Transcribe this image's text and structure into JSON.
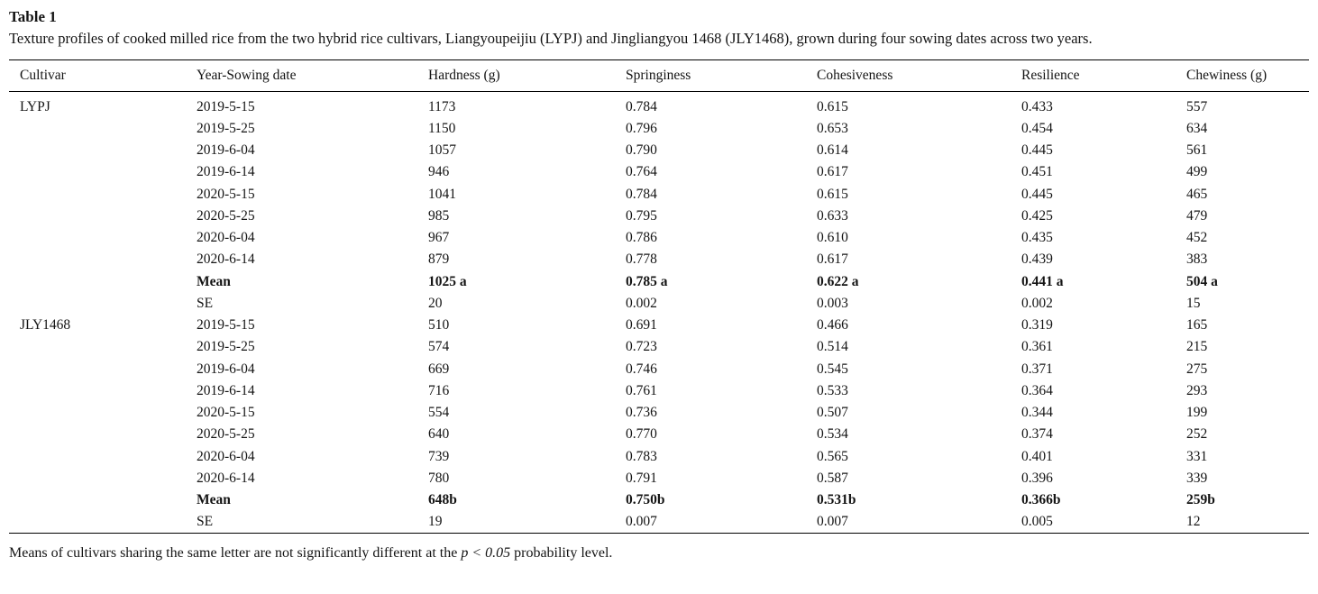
{
  "page": {
    "label": "Table 1",
    "caption": "Texture profiles of cooked milled rice from the two hybrid rice cultivars, Liangyoupeijiu (LYPJ) and Jingliangyou 1468 (JLY1468), grown during four sowing dates across two years.",
    "footnote": {
      "prefix": "Means of cultivars sharing the same letter are not significantly different at the ",
      "italic": "p < 0.05",
      "suffix": " probability level."
    }
  },
  "chart_data": {
    "type": "table",
    "title": "Texture profiles of cooked milled rice (LYPJ and JLY1468, four sowing dates, two years)",
    "columns": [
      "Cultivar",
      "Year-Sowing date",
      "Hardness (g)",
      "Springiness",
      "Cohesiveness",
      "Resilience",
      "Chewiness (g)"
    ],
    "rows": [
      {
        "bold": false,
        "cells": [
          "LYPJ",
          "2019-5-15",
          "1173",
          "0.784",
          "0.615",
          "0.433",
          "557"
        ]
      },
      {
        "bold": false,
        "cells": [
          "",
          "2019-5-25",
          "1150",
          "0.796",
          "0.653",
          "0.454",
          "634"
        ]
      },
      {
        "bold": false,
        "cells": [
          "",
          "2019-6-04",
          "1057",
          "0.790",
          "0.614",
          "0.445",
          "561"
        ]
      },
      {
        "bold": false,
        "cells": [
          "",
          "2019-6-14",
          "946",
          "0.764",
          "0.617",
          "0.451",
          "499"
        ]
      },
      {
        "bold": false,
        "cells": [
          "",
          "2020-5-15",
          "1041",
          "0.784",
          "0.615",
          "0.445",
          "465"
        ]
      },
      {
        "bold": false,
        "cells": [
          "",
          "2020-5-25",
          "985",
          "0.795",
          "0.633",
          "0.425",
          "479"
        ]
      },
      {
        "bold": false,
        "cells": [
          "",
          "2020-6-04",
          "967",
          "0.786",
          "0.610",
          "0.435",
          "452"
        ]
      },
      {
        "bold": false,
        "cells": [
          "",
          "2020-6-14",
          "879",
          "0.778",
          "0.617",
          "0.439",
          "383"
        ]
      },
      {
        "bold": true,
        "cells": [
          "",
          "Mean",
          "1025 a",
          "0.785 a",
          "0.622 a",
          "0.441 a",
          "504 a"
        ]
      },
      {
        "bold": false,
        "cells": [
          "",
          "SE",
          "20",
          "0.002",
          "0.003",
          "0.002",
          "15"
        ]
      },
      {
        "bold": false,
        "cells": [
          "JLY1468",
          "2019-5-15",
          "510",
          "0.691",
          "0.466",
          "0.319",
          "165"
        ]
      },
      {
        "bold": false,
        "cells": [
          "",
          "2019-5-25",
          "574",
          "0.723",
          "0.514",
          "0.361",
          "215"
        ]
      },
      {
        "bold": false,
        "cells": [
          "",
          "2019-6-04",
          "669",
          "0.746",
          "0.545",
          "0.371",
          "275"
        ]
      },
      {
        "bold": false,
        "cells": [
          "",
          "2019-6-14",
          "716",
          "0.761",
          "0.533",
          "0.364",
          "293"
        ]
      },
      {
        "bold": false,
        "cells": [
          "",
          "2020-5-15",
          "554",
          "0.736",
          "0.507",
          "0.344",
          "199"
        ]
      },
      {
        "bold": false,
        "cells": [
          "",
          "2020-5-25",
          "640",
          "0.770",
          "0.534",
          "0.374",
          "252"
        ]
      },
      {
        "bold": false,
        "cells": [
          "",
          "2020-6-04",
          "739",
          "0.783",
          "0.565",
          "0.401",
          "331"
        ]
      },
      {
        "bold": false,
        "cells": [
          "",
          "2020-6-14",
          "780",
          "0.791",
          "0.587",
          "0.396",
          "339"
        ]
      },
      {
        "bold": true,
        "cells": [
          "",
          "Mean",
          "648b",
          "0.750b",
          "0.531b",
          "0.366b",
          "259b"
        ]
      },
      {
        "bold": false,
        "cells": [
          "",
          "SE",
          "19",
          "0.007",
          "0.007",
          "0.005",
          "12"
        ]
      }
    ]
  }
}
